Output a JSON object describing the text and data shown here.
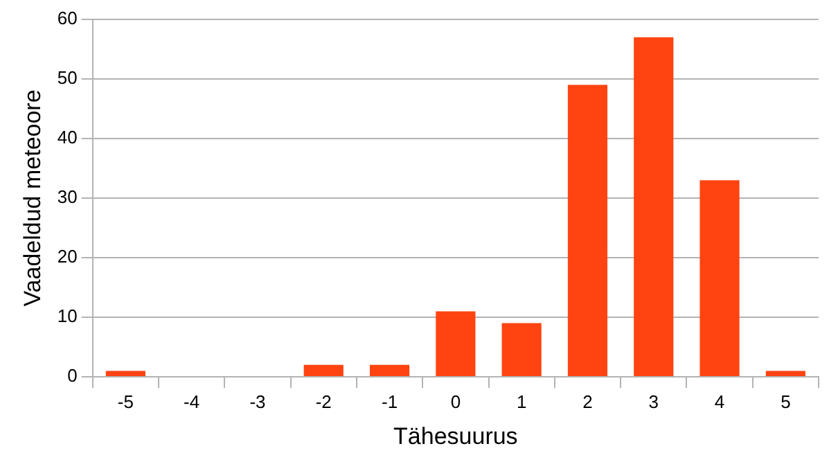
{
  "chart_data": {
    "type": "bar",
    "xlabel": "Tähesuurus",
    "ylabel": "Vaadeldud meteoore",
    "categories": [
      "-5",
      "-4",
      "-3",
      "-2",
      "-1",
      "0",
      "1",
      "2",
      "3",
      "4",
      "5"
    ],
    "values": [
      1,
      0,
      0,
      2,
      2,
      11,
      9,
      49,
      57,
      33,
      1
    ],
    "color": "#ff4411",
    "ylim": [
      0,
      60
    ],
    "yticks": [
      0,
      10,
      20,
      30,
      40,
      50,
      60
    ],
    "grid": "y",
    "legend": false
  }
}
